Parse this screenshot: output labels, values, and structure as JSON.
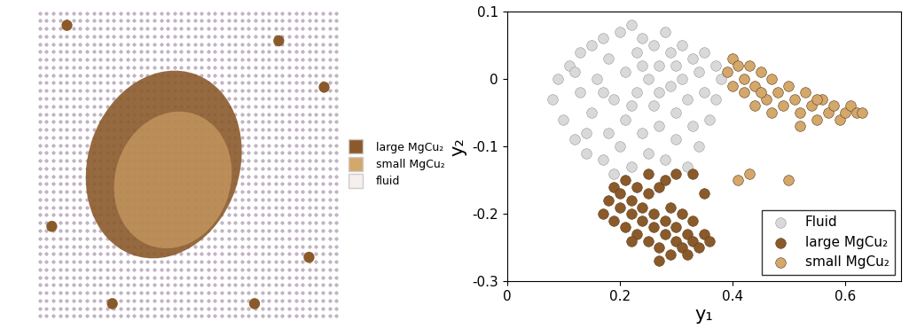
{
  "snapshot": {
    "legend": [
      {
        "name": "large MgCu₂",
        "color": "#8b5a2b"
      },
      {
        "name": "small MgCu₂",
        "color": "#d4a76a"
      },
      {
        "name": "fluid",
        "color": "#f7eeee"
      }
    ]
  },
  "chart_data": {
    "type": "scatter",
    "x_label": "y₁",
    "y_label": "y₂",
    "xlim": [
      0,
      0.7
    ],
    "xticks": [
      0,
      0.2,
      0.4,
      0.6
    ],
    "ylim": [
      -0.3,
      0.1
    ],
    "yticks": [
      -0.3,
      -0.2,
      -0.1,
      0,
      0.1
    ],
    "legend": "lower right",
    "marker": "o",
    "series": [
      {
        "name": "Fluid",
        "color": "#d9d9d9",
        "x": [
          0.08,
          0.09,
          0.1,
          0.11,
          0.12,
          0.13,
          0.13,
          0.14,
          0.15,
          0.15,
          0.16,
          0.17,
          0.17,
          0.18,
          0.18,
          0.19,
          0.2,
          0.2,
          0.21,
          0.21,
          0.22,
          0.22,
          0.23,
          0.23,
          0.24,
          0.24,
          0.25,
          0.25,
          0.26,
          0.26,
          0.27,
          0.27,
          0.28,
          0.28,
          0.29,
          0.29,
          0.3,
          0.3,
          0.31,
          0.31,
          0.32,
          0.32,
          0.33,
          0.33,
          0.34,
          0.34,
          0.35,
          0.35,
          0.36,
          0.37,
          0.37,
          0.38,
          0.19,
          0.14,
          0.12,
          0.22,
          0.27,
          0.17,
          0.24,
          0.3
        ],
        "y": [
          -0.03,
          0.0,
          -0.06,
          0.02,
          -0.09,
          0.04,
          -0.02,
          -0.11,
          0.05,
          -0.05,
          0.0,
          -0.12,
          0.06,
          -0.08,
          0.03,
          -0.03,
          0.07,
          -0.1,
          0.01,
          -0.06,
          0.08,
          -0.13,
          -0.02,
          0.04,
          -0.08,
          0.06,
          0.0,
          -0.11,
          -0.04,
          0.05,
          0.02,
          -0.07,
          0.07,
          -0.12,
          -0.01,
          0.04,
          -0.05,
          -0.09,
          0.05,
          0.0,
          -0.03,
          -0.13,
          0.03,
          -0.07,
          0.01,
          -0.1,
          -0.02,
          0.04,
          -0.06,
          0.02,
          -0.03,
          0.0,
          -0.14,
          -0.08,
          0.01,
          -0.04,
          -0.02,
          -0.02,
          0.02,
          0.02
        ]
      },
      {
        "name": "large MgCu₂",
        "color": "#8b5a2b",
        "x": [
          0.17,
          0.18,
          0.19,
          0.19,
          0.2,
          0.2,
          0.21,
          0.21,
          0.22,
          0.22,
          0.23,
          0.23,
          0.24,
          0.24,
          0.25,
          0.25,
          0.26,
          0.26,
          0.27,
          0.27,
          0.28,
          0.28,
          0.29,
          0.29,
          0.3,
          0.3,
          0.31,
          0.31,
          0.32,
          0.32,
          0.33,
          0.33,
          0.34,
          0.35,
          0.36,
          0.25,
          0.28,
          0.3,
          0.33,
          0.35,
          0.27,
          0.22
        ],
        "y": [
          -0.2,
          -0.18,
          -0.16,
          -0.21,
          -0.17,
          -0.19,
          -0.15,
          -0.22,
          -0.18,
          -0.2,
          -0.16,
          -0.23,
          -0.19,
          -0.21,
          -0.17,
          -0.24,
          -0.2,
          -0.22,
          -0.16,
          -0.25,
          -0.21,
          -0.23,
          -0.19,
          -0.26,
          -0.22,
          -0.24,
          -0.25,
          -0.2,
          -0.23,
          -0.26,
          -0.24,
          -0.21,
          -0.25,
          -0.23,
          -0.24,
          -0.14,
          -0.15,
          -0.14,
          -0.14,
          -0.17,
          -0.27,
          -0.24
        ]
      },
      {
        "name": "small MgCu₂",
        "color": "#d4a76a",
        "x": [
          0.39,
          0.4,
          0.4,
          0.41,
          0.42,
          0.43,
          0.44,
          0.45,
          0.46,
          0.47,
          0.48,
          0.49,
          0.5,
          0.51,
          0.52,
          0.53,
          0.54,
          0.55,
          0.56,
          0.57,
          0.58,
          0.59,
          0.6,
          0.61,
          0.62,
          0.63,
          0.44,
          0.47,
          0.42,
          0.5,
          0.43,
          0.41,
          0.52,
          0.45,
          0.55
        ],
        "y": [
          0.01,
          0.03,
          -0.01,
          0.02,
          -0.02,
          0.02,
          -0.01,
          0.01,
          -0.03,
          0.0,
          -0.02,
          -0.04,
          -0.01,
          -0.03,
          -0.05,
          -0.02,
          -0.04,
          -0.06,
          -0.03,
          -0.05,
          -0.04,
          -0.06,
          -0.05,
          -0.04,
          -0.05,
          -0.05,
          -0.04,
          -0.05,
          0.0,
          -0.15,
          -0.14,
          -0.15,
          -0.07,
          -0.02,
          -0.03
        ]
      }
    ]
  }
}
